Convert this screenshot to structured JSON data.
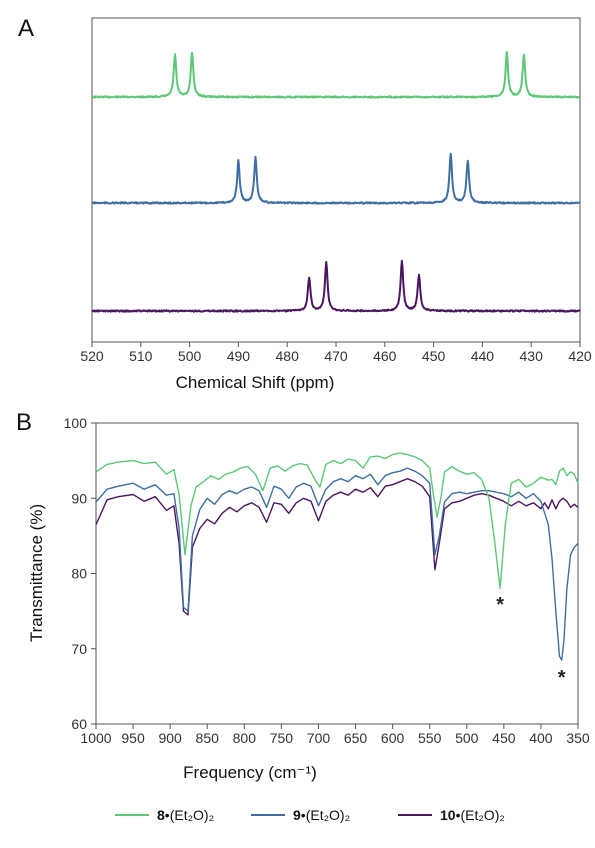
{
  "figure": {
    "legend": [
      {
        "id": "s8",
        "label": "8•(Et₂O)₂",
        "bold_part": "8",
        "rest": "•(Et₂O)₂",
        "color": "#5cc876"
      },
      {
        "id": "s9",
        "label": "9•(Et₂O)₂",
        "bold_part": "9",
        "rest": "•(Et₂O)₂",
        "color": "#3e6fa2"
      },
      {
        "id": "s10",
        "label": "10•(Et₂O)₂",
        "bold_part": "10",
        "rest": "•(Et₂O)₂",
        "color": "#4c1560"
      }
    ]
  },
  "chart_data": [
    {
      "panel": "A",
      "type": "line",
      "xlabel": "Chemical Shift (ppm)",
      "ylabel": "",
      "xlim": [
        520,
        420
      ],
      "x_reversed": true,
      "x_ticks": [
        520,
        510,
        500,
        490,
        480,
        470,
        460,
        450,
        440,
        430,
        420
      ],
      "y_axis_shown": false,
      "series": [
        {
          "legend": "8•(Et₂O)₂",
          "color": "#5cc876",
          "peaks_ppm": [
            503,
            499.5,
            435,
            431.5
          ],
          "peak_heights": [
            1.0,
            1.05,
            1.05,
            1.0
          ]
        },
        {
          "legend": "9•(Et₂O)₂",
          "color": "#3e6fa2",
          "peaks_ppm": [
            490,
            486.5,
            446.5,
            443
          ],
          "peak_heights": [
            1.0,
            1.1,
            1.15,
            1.0
          ]
        },
        {
          "legend": "10•(Et₂O)₂",
          "color": "#4c1560",
          "peaks_ppm": [
            475.5,
            472,
            456.5,
            453
          ],
          "peak_heights": [
            0.8,
            1.15,
            1.2,
            0.85
          ]
        }
      ]
    },
    {
      "panel": "B",
      "type": "line",
      "xlabel": "Frequency (cm⁻¹)",
      "ylabel": "Transmittance (%)",
      "xlim": [
        1000,
        350
      ],
      "x_reversed": true,
      "ylim": [
        60,
        100
      ],
      "x_ticks": [
        1000,
        950,
        900,
        850,
        800,
        750,
        700,
        650,
        600,
        550,
        500,
        450,
        400,
        350
      ],
      "y_ticks": [
        60,
        70,
        80,
        90,
        100
      ],
      "series": [
        {
          "legend": "8•(Et₂O)₂",
          "color": "#5cc876",
          "x": [
            1000,
            985,
            970,
            950,
            935,
            920,
            905,
            895,
            888,
            880,
            872,
            865,
            855,
            845,
            835,
            825,
            815,
            805,
            795,
            785,
            775,
            765,
            755,
            745,
            735,
            725,
            715,
            705,
            698,
            690,
            680,
            670,
            660,
            650,
            640,
            630,
            620,
            610,
            600,
            590,
            580,
            570,
            560,
            550,
            545,
            540,
            535,
            530,
            520,
            510,
            500,
            490,
            480,
            470,
            462,
            455,
            448,
            440,
            430,
            420,
            410,
            400,
            390,
            385,
            380,
            375,
            370,
            365,
            360,
            355,
            350
          ],
          "y": [
            93.5,
            94.5,
            94.8,
            95.0,
            94.6,
            94.8,
            93.2,
            93.8,
            90.5,
            82.5,
            89.0,
            91.5,
            92.2,
            93.0,
            92.5,
            93.2,
            93.5,
            94.0,
            94.2,
            93.2,
            91.0,
            94.0,
            94.3,
            93.6,
            94.3,
            94.6,
            94.4,
            92.5,
            91.5,
            94.5,
            95.0,
            94.6,
            95.2,
            95.0,
            94.0,
            95.5,
            95.6,
            95.3,
            95.8,
            96.0,
            95.8,
            95.5,
            95.0,
            94.0,
            90.5,
            87.5,
            90.0,
            93.5,
            94.2,
            93.6,
            93.2,
            93.4,
            92.5,
            90.0,
            84.0,
            78.0,
            86.5,
            92.0,
            92.5,
            91.5,
            92.0,
            92.8,
            92.4,
            92.5,
            91.8,
            93.6,
            94.0,
            93.0,
            93.5,
            93.2,
            92.0
          ]
        },
        {
          "legend": "9•(Et₂O)₂",
          "color": "#3e6fa2",
          "x": [
            1000,
            985,
            970,
            950,
            935,
            920,
            905,
            895,
            888,
            882,
            876,
            870,
            860,
            850,
            840,
            830,
            820,
            810,
            800,
            790,
            780,
            770,
            760,
            750,
            740,
            730,
            720,
            710,
            700,
            690,
            680,
            670,
            660,
            650,
            640,
            630,
            620,
            610,
            600,
            590,
            580,
            570,
            560,
            550,
            543,
            537,
            530,
            520,
            510,
            500,
            490,
            480,
            470,
            460,
            450,
            440,
            430,
            420,
            410,
            400,
            390,
            385,
            380,
            375,
            372,
            369,
            365,
            360,
            355,
            350
          ],
          "y": [
            89.5,
            91.2,
            91.6,
            92.0,
            91.2,
            91.8,
            90.4,
            90.6,
            86.0,
            75.5,
            75.0,
            85.0,
            88.5,
            90.0,
            89.2,
            90.5,
            91.0,
            90.6,
            91.2,
            91.5,
            91.0,
            88.8,
            91.6,
            91.2,
            90.0,
            91.5,
            92.0,
            91.6,
            89.0,
            91.2,
            92.2,
            92.6,
            92.2,
            93.0,
            92.6,
            93.2,
            91.8,
            93.0,
            93.4,
            93.6,
            94.0,
            93.6,
            93.0,
            92.0,
            82.5,
            85.0,
            89.5,
            90.6,
            90.8,
            90.6,
            90.8,
            91.0,
            91.0,
            90.8,
            90.6,
            90.2,
            90.8,
            90.0,
            90.6,
            89.6,
            86.5,
            82.0,
            75.0,
            69.0,
            68.5,
            71.0,
            78.0,
            82.5,
            83.5,
            84.0
          ]
        },
        {
          "legend": "10•(Et₂O)₂",
          "color": "#4c1560",
          "x": [
            1000,
            985,
            970,
            950,
            935,
            920,
            905,
            895,
            888,
            882,
            876,
            870,
            860,
            850,
            840,
            830,
            820,
            810,
            800,
            790,
            780,
            770,
            760,
            750,
            740,
            730,
            720,
            710,
            700,
            690,
            680,
            670,
            660,
            650,
            640,
            630,
            620,
            610,
            600,
            590,
            580,
            570,
            560,
            550,
            543,
            537,
            530,
            520,
            510,
            500,
            490,
            480,
            470,
            460,
            450,
            440,
            430,
            420,
            410,
            400,
            395,
            390,
            385,
            380,
            375,
            370,
            365,
            360,
            355,
            350
          ],
          "y": [
            86.5,
            89.8,
            90.2,
            90.5,
            89.6,
            90.2,
            88.4,
            89.0,
            84.0,
            75.0,
            74.5,
            83.5,
            86.0,
            87.2,
            86.6,
            88.0,
            88.8,
            88.2,
            89.0,
            89.4,
            88.8,
            86.8,
            89.4,
            89.2,
            88.0,
            89.4,
            90.0,
            89.6,
            87.0,
            89.6,
            90.4,
            90.8,
            90.4,
            91.2,
            90.8,
            91.4,
            90.2,
            91.6,
            91.8,
            92.2,
            92.6,
            92.2,
            91.6,
            90.2,
            80.5,
            84.0,
            88.6,
            89.4,
            89.6,
            90.0,
            90.4,
            90.6,
            90.4,
            90.0,
            89.6,
            89.0,
            89.6,
            89.0,
            89.4,
            88.6,
            89.4,
            88.6,
            89.8,
            88.6,
            89.6,
            90.0,
            89.6,
            88.8,
            89.2,
            88.8
          ]
        }
      ],
      "annotations": [
        {
          "text": "*",
          "x": 455,
          "y": 76.2,
          "color": "#5cc876"
        },
        {
          "text": "*",
          "x": 372,
          "y": 66.5,
          "color": "#3e6fa2"
        }
      ]
    }
  ]
}
